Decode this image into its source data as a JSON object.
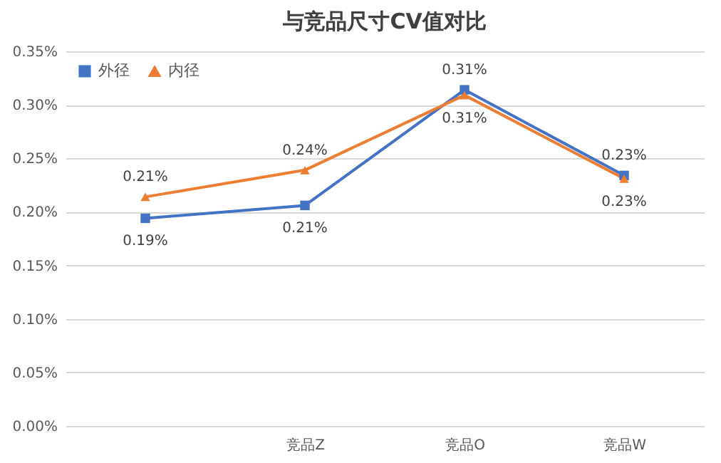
{
  "chart_data": {
    "type": "line",
    "title": "与竞品尺寸CV值对比",
    "categories": [
      null,
      "竞品Z",
      "竞品O",
      "竞品W"
    ],
    "series": [
      {
        "name": "外径",
        "color": "#4472c4",
        "marker": "square",
        "values": [
          0.194,
          0.206,
          0.314,
          0.234
        ],
        "value_labels": [
          "0.19%",
          "0.21%",
          "0.31%",
          "0.23%"
        ]
      },
      {
        "name": "内径",
        "color": "#ed7d31",
        "marker": "triangle",
        "values": [
          0.214,
          0.239,
          0.309,
          0.231
        ],
        "value_labels": [
          "0.21%",
          "0.24%",
          "0.31%",
          "0.23%"
        ]
      }
    ],
    "ylim": [
      0,
      0.35
    ],
    "yticks": [
      {
        "value": 0,
        "label": "0.00%"
      },
      {
        "value": 0.05,
        "label": "0.05%"
      },
      {
        "value": 0.1,
        "label": "0.10%"
      },
      {
        "value": 0.15,
        "label": "0.15%"
      },
      {
        "value": 0.2,
        "label": "0.20%"
      },
      {
        "value": 0.25,
        "label": "0.25%"
      },
      {
        "value": 0.3,
        "label": "0.30%"
      },
      {
        "value": 0.35,
        "label": "0.35%"
      }
    ],
    "grid": "y",
    "legend": "top left"
  }
}
